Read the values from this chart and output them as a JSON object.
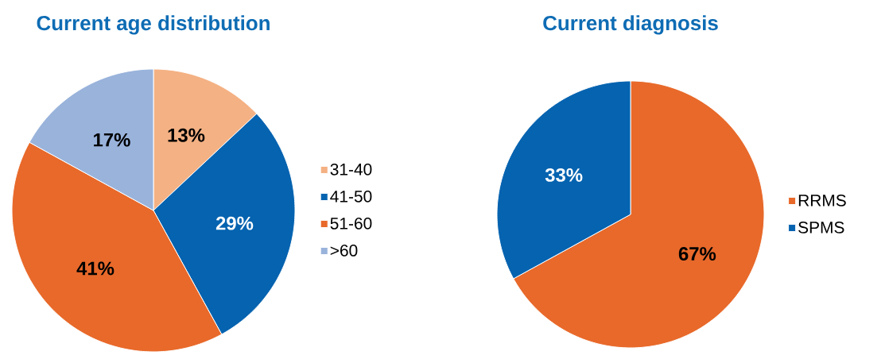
{
  "chart_data": [
    {
      "type": "pie",
      "title": "Current age distribution",
      "categories": [
        "31-40",
        "41-50",
        "51-60",
        ">60"
      ],
      "values": [
        13,
        29,
        41,
        17
      ],
      "value_labels": [
        "13%",
        "29%",
        "41%",
        "17%"
      ],
      "colors": [
        "#f4b183",
        "#0563b0",
        "#e8692a",
        "#99b3db"
      ],
      "legend": "right"
    },
    {
      "type": "pie",
      "title": "Current diagnosis",
      "categories": [
        "RRMS",
        "SPMS"
      ],
      "values": [
        67,
        33
      ],
      "value_labels": [
        "67%",
        "33%"
      ],
      "colors": [
        "#e8692a",
        "#0563b0"
      ],
      "legend": "right"
    }
  ]
}
